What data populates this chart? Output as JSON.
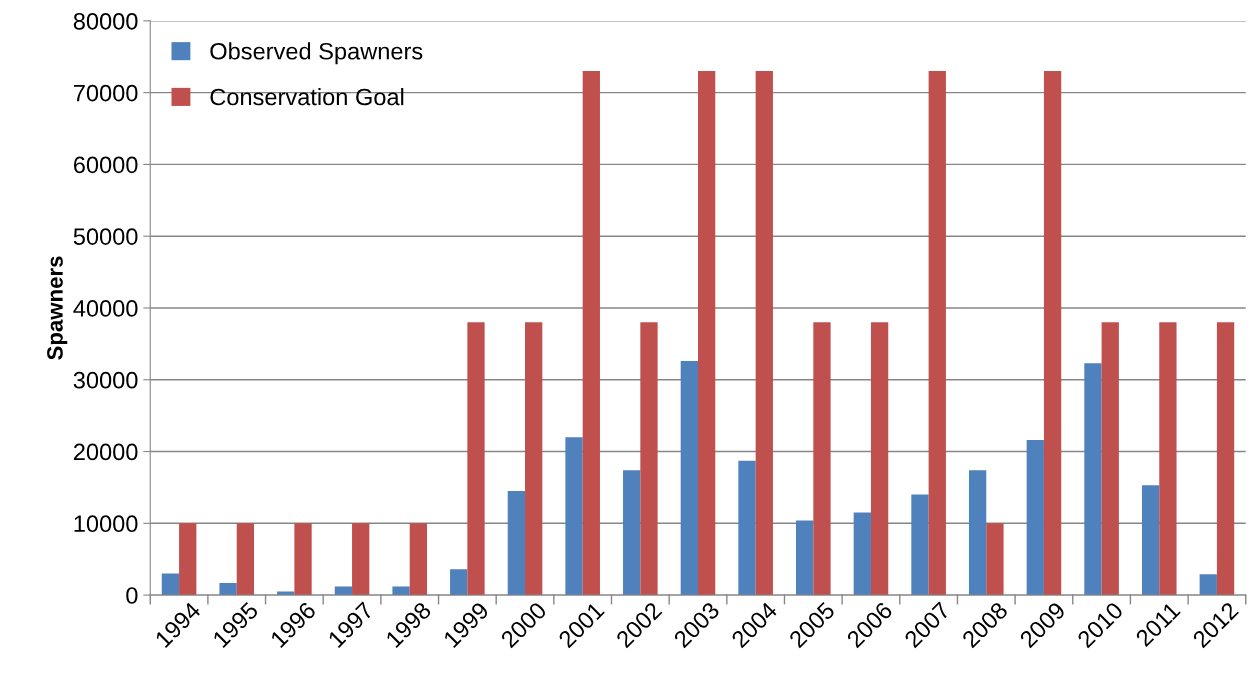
{
  "chart_data": {
    "type": "bar",
    "ylabel": "Spawners",
    "categories": [
      "1994",
      "1995",
      "1996",
      "1997",
      "1998",
      "1999",
      "2000",
      "2001",
      "2002",
      "2003",
      "2004",
      "2005",
      "2006",
      "2007",
      "2008",
      "2009",
      "2010",
      "2011",
      "2012"
    ],
    "series": [
      {
        "name": "Observed Spawners",
        "color": "#4f81bd",
        "values": [
          3000,
          1700,
          500,
          1200,
          1200,
          3600,
          14500,
          22000,
          17400,
          32600,
          18700,
          10400,
          11500,
          14000,
          17400,
          21600,
          32300,
          15300,
          2900
        ]
      },
      {
        "name": "Conservation Goal",
        "color": "#c0504d",
        "values": [
          10000,
          10000,
          10000,
          10000,
          10000,
          38000,
          38000,
          73000,
          38000,
          73000,
          73000,
          38000,
          38000,
          73000,
          10000,
          73000,
          38000,
          38000,
          38000
        ]
      }
    ],
    "ylim": [
      0,
      80000
    ],
    "yticks": [
      0,
      10000,
      20000,
      30000,
      40000,
      50000,
      60000,
      70000,
      80000
    ],
    "grid": "y",
    "legend": "top left"
  }
}
